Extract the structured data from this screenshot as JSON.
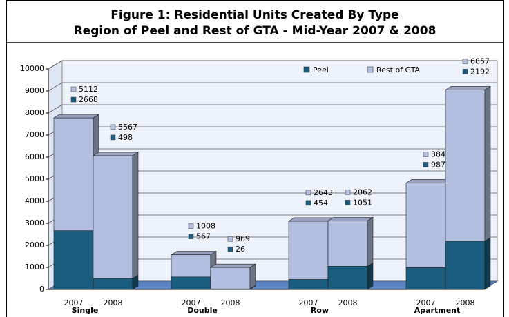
{
  "chart_data": {
    "type": "stacked-bar-3d",
    "title": "Figure 1:  Residential Units Created By Type",
    "subtitle": "Region of Peel and Rest of GTA - Mid-Year 2007 & 2008",
    "categories": [
      "2007",
      "2008",
      "2007",
      "2008",
      "2007",
      "2008",
      "2007",
      "2008"
    ],
    "groups": [
      "Single",
      "Double",
      "Row",
      "Apartment"
    ],
    "series": [
      {
        "name": "Peel",
        "color": "#1b5d7e",
        "values": [
          2668,
          498,
          567,
          26,
          454,
          1051,
          987,
          2192
        ]
      },
      {
        "name": "Rest of GTA",
        "color": "#b3bfe1",
        "values": [
          5112,
          5567,
          1008,
          969,
          2643,
          2062,
          3842,
          6857
        ]
      }
    ],
    "ylim": [
      0,
      10000
    ],
    "yticks": [
      0,
      1000,
      2000,
      3000,
      4000,
      5000,
      6000,
      7000,
      8000,
      9000,
      10000
    ],
    "grid": true,
    "legend": "top-right"
  }
}
